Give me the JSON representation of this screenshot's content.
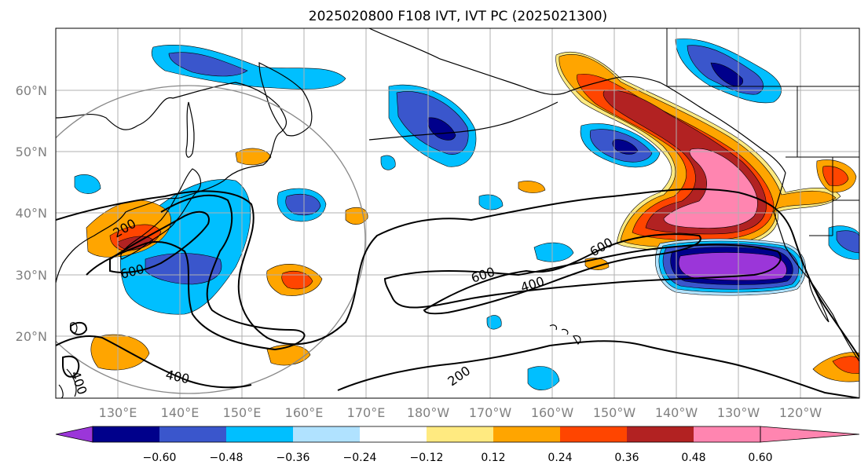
{
  "title": "2025020800 F108 IVT, IVT PC (2025021300)",
  "lat_labels": [
    "60°N",
    "50°N",
    "40°N",
    "30°N",
    "20°N"
  ],
  "lon_labels": [
    "130°E",
    "140°E",
    "150°E",
    "160°E",
    "170°E",
    "180°W",
    "170°W",
    "160°W",
    "150°W",
    "140°W",
    "130°W",
    "120°W"
  ],
  "colorbar": {
    "colors": [
      "#9b36d9",
      "#00008b",
      "#3a56cc",
      "#00bfff",
      "#b0e2ff",
      "#ffffff",
      "#ffea80",
      "#ffa500",
      "#ff4500",
      "#b22222",
      "#ff85b0"
    ],
    "ticks": [
      "−0.60",
      "−0.48",
      "−0.36",
      "−0.24",
      "−0.12",
      "0.12",
      "0.24",
      "0.36",
      "0.48",
      "0.60"
    ]
  },
  "contour_labels": [
    "200",
    "600",
    "400",
    "600",
    "400",
    "600",
    "200",
    "400",
    "400"
  ],
  "legend_colors": {
    "neg": [
      "#b0e2ff",
      "#00bfff",
      "#3a56cc",
      "#00008b",
      "#9b36d9"
    ],
    "pos": [
      "#ffea80",
      "#ffa500",
      "#ff4500",
      "#b22222",
      "#ff85b0"
    ]
  }
}
